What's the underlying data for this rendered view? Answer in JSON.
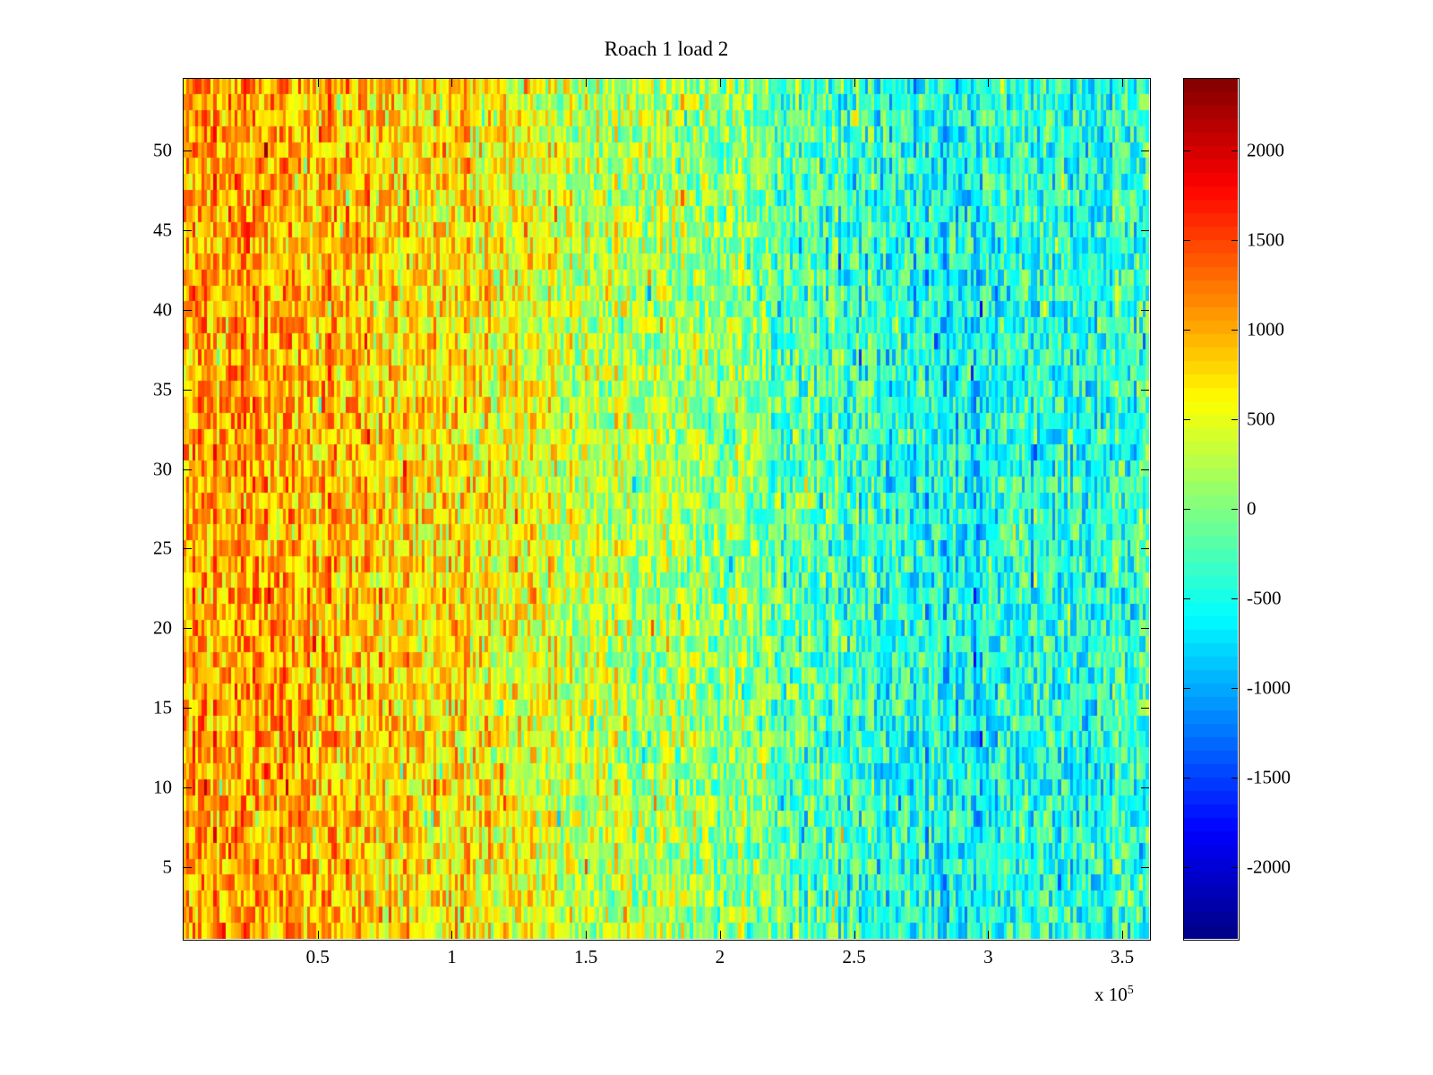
{
  "title": "Roach 1 load 2",
  "chart_data": {
    "type": "heatmap",
    "title": "Roach 1 load 2",
    "xlabel": "",
    "ylabel": "",
    "x_range": [
      0,
      360000
    ],
    "y_range": [
      0.5,
      54.5
    ],
    "x_ticks": [
      {
        "value": 50000,
        "label": "0.5"
      },
      {
        "value": 100000,
        "label": "1"
      },
      {
        "value": 150000,
        "label": "1.5"
      },
      {
        "value": 200000,
        "label": "2"
      },
      {
        "value": 250000,
        "label": "2.5"
      },
      {
        "value": 300000,
        "label": "3"
      },
      {
        "value": 350000,
        "label": "3.5"
      }
    ],
    "x_exponent_label": {
      "base": "x 10",
      "exp": "5"
    },
    "y_ticks": [
      {
        "value": 5,
        "label": "5"
      },
      {
        "value": 10,
        "label": "10"
      },
      {
        "value": 15,
        "label": "15"
      },
      {
        "value": 20,
        "label": "20"
      },
      {
        "value": 25,
        "label": "25"
      },
      {
        "value": 30,
        "label": "30"
      },
      {
        "value": 35,
        "label": "35"
      },
      {
        "value": 40,
        "label": "40"
      },
      {
        "value": 45,
        "label": "45"
      },
      {
        "value": 50,
        "label": "50"
      }
    ],
    "rows": 54,
    "cols": 320,
    "clim": [
      -2400,
      2400
    ],
    "colorbar_ticks": [
      {
        "value": 2000,
        "label": "2000"
      },
      {
        "value": 1500,
        "label": "1500"
      },
      {
        "value": 1000,
        "label": "1000"
      },
      {
        "value": 500,
        "label": "500"
      },
      {
        "value": 0,
        "label": "0"
      },
      {
        "value": -500,
        "label": "-500"
      },
      {
        "value": -1000,
        "label": "-1000"
      },
      {
        "value": -1500,
        "label": "-1500"
      },
      {
        "value": -2000,
        "label": "-2000"
      }
    ],
    "colorbar_segments": 64,
    "colormap": {
      "name": "jet",
      "stops": [
        {
          "t": 0.0,
          "rgb": [
            0,
            0,
            131
          ]
        },
        {
          "t": 0.125,
          "rgb": [
            0,
            0,
            255
          ]
        },
        {
          "t": 0.375,
          "rgb": [
            0,
            255,
            255
          ]
        },
        {
          "t": 0.625,
          "rgb": [
            255,
            255,
            0
          ]
        },
        {
          "t": 0.875,
          "rgb": [
            255,
            0,
            0
          ]
        },
        {
          "t": 1.0,
          "rgb": [
            128,
            0,
            0
          ]
        }
      ]
    },
    "mean_profile": [
      {
        "x_frac": 0.0,
        "value": 1150
      },
      {
        "x_frac": 0.08,
        "value": 1050
      },
      {
        "x_frac": 0.18,
        "value": 900
      },
      {
        "x_frac": 0.3,
        "value": 650
      },
      {
        "x_frac": 0.45,
        "value": 300
      },
      {
        "x_frac": 0.58,
        "value": 0
      },
      {
        "x_frac": 0.68,
        "value": -300
      },
      {
        "x_frac": 0.78,
        "value": -600
      },
      {
        "x_frac": 0.88,
        "value": -480
      },
      {
        "x_frac": 1.0,
        "value": -400
      }
    ],
    "noise_amplitude": 620,
    "column_noise_amplitude": 220,
    "seed": 1337,
    "grid": false,
    "legend": "colorbar-right",
    "axis_color": "#000000",
    "background_color": "#ffffff"
  }
}
